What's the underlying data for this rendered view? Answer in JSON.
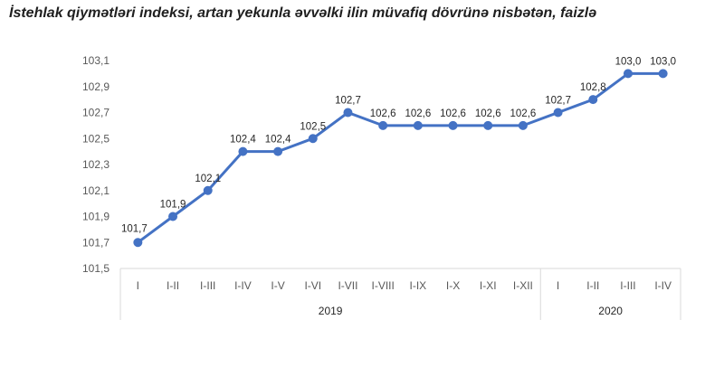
{
  "title": "İstehlak qiymətləri indeksi, artan yekunla əvvəlki ilin müvafiq dövrünə nisbətən, faizlə",
  "chart_data": {
    "type": "line",
    "title": "İstehlak qiymətləri indeksi, artan yekunla əvvəlki ilin müvafiq dövrünə nisbətən, faizlə",
    "categories": [
      "I",
      "I-II",
      "I-III",
      "I-IV",
      "I-V",
      "I-VI",
      "I-VII",
      "I-VIII",
      "I-IX",
      "I-X",
      "I-XI",
      "I-XII",
      "I",
      "I-II",
      "I-III",
      "I-IV"
    ],
    "groups": [
      {
        "label": "2019",
        "count": 12
      },
      {
        "label": "2020",
        "count": 4
      }
    ],
    "values": [
      101.7,
      101.9,
      102.1,
      102.4,
      102.4,
      102.5,
      102.7,
      102.6,
      102.6,
      102.6,
      102.6,
      102.6,
      102.7,
      102.8,
      103.0,
      103.0
    ],
    "data_labels": [
      "101,7",
      "101,9",
      "102,1",
      "102,4",
      "102,4",
      "102,5",
      "102,7",
      "102,6",
      "102,6",
      "102,6",
      "102,6",
      "102,6",
      "102,7",
      "102,8",
      "103,0",
      "103,0"
    ],
    "y_ticks": [
      "101,5",
      "101,7",
      "101,9",
      "102,1",
      "102,3",
      "102,5",
      "102,7",
      "102,9",
      "103,1"
    ],
    "ylim": [
      101.5,
      103.1
    ],
    "grid": false,
    "legend": "none",
    "line_color": "#4472C4",
    "axis_color": "#D9D9D9"
  }
}
